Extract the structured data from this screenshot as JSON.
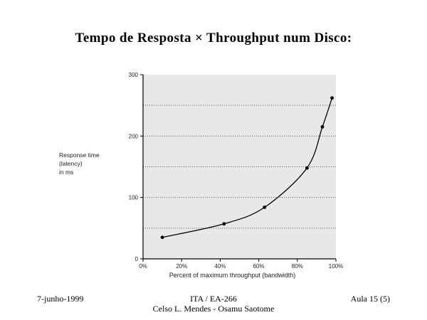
{
  "slide": {
    "title": "Tempo de Resposta × Throughput num Disco:"
  },
  "footer": {
    "date": "7-junho-1999",
    "course": "ITA / EA-266",
    "authors": "Celso L. Mendes - Osamu Saotome",
    "lecture": "Aula 15 (5)"
  },
  "chart_data": {
    "type": "line",
    "title": "",
    "xlabel": "Percent of maximum throughput (bandwidth)",
    "ylabel_lines": [
      "Response time",
      "(latency)",
      "in ms"
    ],
    "xlim": [
      0,
      100
    ],
    "ylim": [
      0,
      300
    ],
    "x_ticks": [
      0,
      20,
      40,
      60,
      80,
      100
    ],
    "x_tick_labels": [
      "0%",
      "20%",
      "40%",
      "60%",
      "80%",
      "100%"
    ],
    "y_ticks": [
      0,
      100,
      200,
      300
    ],
    "y_tick_labels": [
      "0",
      "100",
      "200",
      "300"
    ],
    "grid": "horizontal-dotted",
    "background_color": "#e8e8e8",
    "series": [
      {
        "x": [
          10,
          42,
          63,
          85,
          93,
          98
        ],
        "y": [
          35,
          57,
          84,
          148,
          215,
          262
        ]
      }
    ]
  }
}
